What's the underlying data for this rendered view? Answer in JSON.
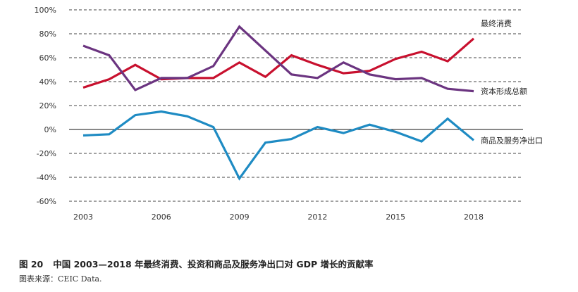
{
  "figure": {
    "number": "图 20",
    "title": "中国 2003—2018 年最终消费、投资和商品及服务净出口对 GDP 增长的贡献率",
    "source": "图表来源：CEIC Data."
  },
  "chart_data": {
    "type": "line",
    "x": [
      2003,
      2004,
      2005,
      2006,
      2007,
      2008,
      2009,
      2010,
      2011,
      2012,
      2013,
      2014,
      2015,
      2016,
      2017,
      2018
    ],
    "x_ticks": [
      "2003",
      "2006",
      "2009",
      "2012",
      "2015",
      "2018"
    ],
    "y_ticks": [
      "100%",
      "80%",
      "60%",
      "40%",
      "20%",
      "0%",
      "-20%",
      "-40%",
      "-60%"
    ],
    "ylim": [
      -60,
      100
    ],
    "y_tick_values": [
      100,
      80,
      60,
      40,
      20,
      0,
      -20,
      -40,
      -60
    ],
    "grid": "horizontal dashed",
    "series": [
      {
        "name": "最终消费",
        "color": "#c8102e",
        "values": [
          35,
          42,
          54,
          42,
          43,
          43,
          56,
          44,
          62,
          54,
          47,
          49,
          59,
          65,
          57,
          76
        ]
      },
      {
        "name": "资本形成总额",
        "color": "#6b3480",
        "values": [
          70,
          62,
          33,
          43,
          43,
          53,
          86,
          66,
          46,
          43,
          56,
          46,
          42,
          43,
          34,
          32
        ]
      },
      {
        "name": "商品及服务净出口",
        "color": "#1e8bc3",
        "values": [
          -5,
          -4,
          12,
          15,
          11,
          2,
          -41,
          -11,
          -8,
          2,
          -3,
          4,
          -2,
          -10,
          9,
          -9
        ]
      }
    ]
  }
}
